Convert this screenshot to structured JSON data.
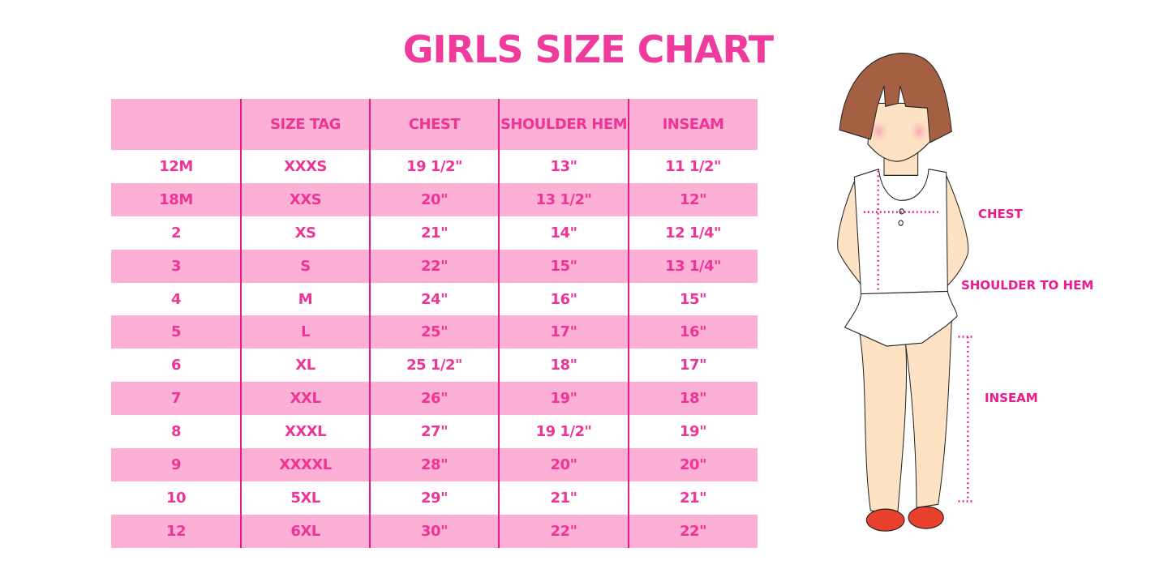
{
  "title": "GIRLS SIZE CHART",
  "table": {
    "headers": [
      "",
      "SIZE TAG",
      "CHEST",
      "SHOULDER HEM",
      "INSEAM"
    ],
    "rows": [
      [
        "12M",
        "XXXS",
        "19 1/2\"",
        "13\"",
        "11 1/2\""
      ],
      [
        "18M",
        "XXS",
        "20\"",
        "13 1/2\"",
        "12\""
      ],
      [
        "2",
        "XS",
        "21\"",
        "14\"",
        "12 1/4\""
      ],
      [
        "3",
        "S",
        "22\"",
        "15\"",
        "13 1/4\""
      ],
      [
        "4",
        "M",
        "24\"",
        "16\"",
        "15\""
      ],
      [
        "5",
        "L",
        "25\"",
        "17\"",
        "16\""
      ],
      [
        "6",
        "XL",
        "25 1/2\"",
        "18\"",
        "17\""
      ],
      [
        "7",
        "XXL",
        "26\"",
        "19\"",
        "18\""
      ],
      [
        "8",
        "XXXL",
        "27\"",
        "19 1/2\"",
        "19\""
      ],
      [
        "9",
        "XXXXL",
        "28\"",
        "20\"",
        "20\""
      ],
      [
        "10",
        "5XL",
        "29\"",
        "21\"",
        "21\""
      ],
      [
        "12",
        "6XL",
        "30\"",
        "22\"",
        "22\""
      ]
    ]
  },
  "illustration": {
    "labels": {
      "chest": "CHEST",
      "shoulder_to_hem": "SHOULDER TO HEM",
      "inseam": "INSEAM"
    }
  },
  "colors": {
    "accent": "#ef3b9c",
    "row_pink": "#fdb0d6",
    "divider": "#e01e8a"
  }
}
